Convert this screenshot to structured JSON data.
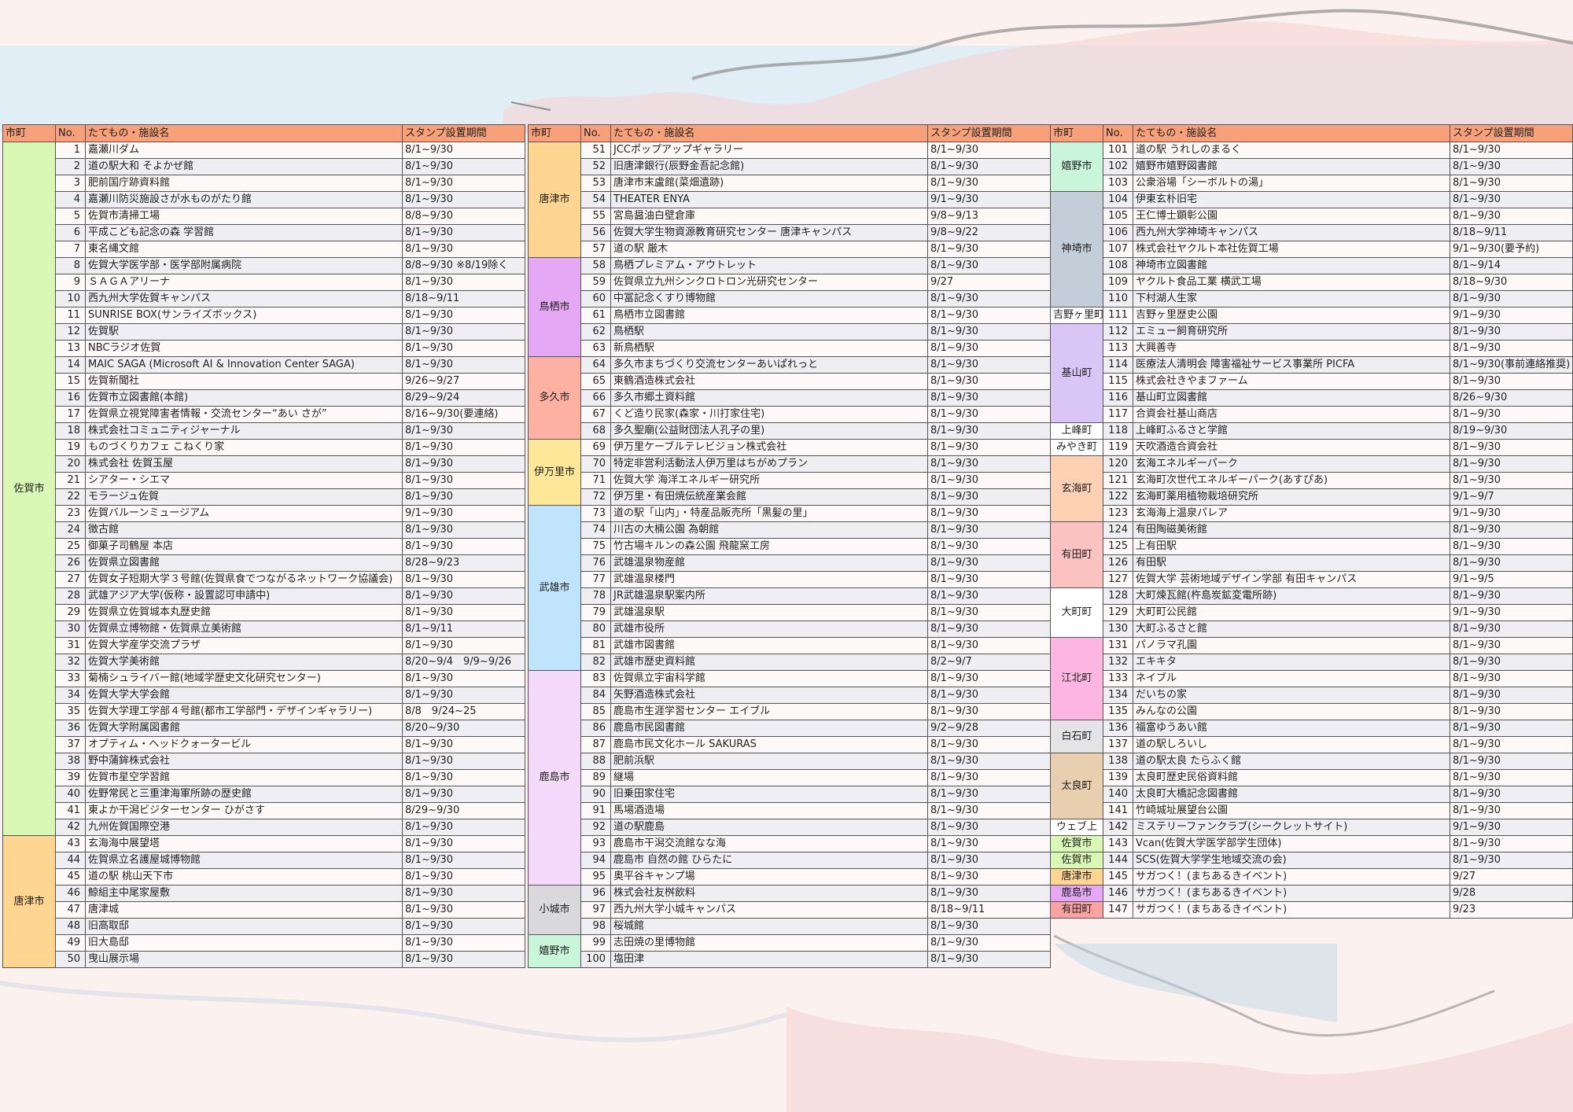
{
  "header": {
    "city": "市町",
    "no": "No.",
    "name": "たてもの・施設名",
    "period": "スタンプ設置期間"
  },
  "colors": {
    "header": "#f7a07a",
    "佐賀市": "#d9f7b5",
    "唐津市": "#ffd592",
    "鳥栖市": "#e4a8f4",
    "多久市": "#fcb1a3",
    "伊万里市": "#ffe79a",
    "武雄市": "#bfe4fb",
    "鹿島市": "#f3d9fa",
    "小城市": "#d9d9dc",
    "嬉野市": "#c9f6da",
    "神埼市": "#c3ced8",
    "吉野ヶ里町": "#ffffff",
    "基山町": "#d9c6f6",
    "上峰町": "#ffffff",
    "みやき町": "#ffffff",
    "玄海町": "#fed1b4",
    "有田町": "#fbc2c2",
    "大町町": "#ffffff",
    "江北町": "#fdb6e2",
    "白石町": "#e4e4e6",
    "太良町": "#e7cfb0",
    "ウェブ上": "#ffffff",
    "佐賀市web": "#d9f7b5",
    "唐津市web": "#ffd592",
    "鹿島市web": "#e4a8f4",
    "有田町web": "#fba3a3"
  },
  "tables": [
    {
      "groups": [
        {
          "city": "佐賀市",
          "color": "#d9f7b5",
          "rows": [
            [
              "1",
              "嘉瀬川ダム",
              "8/1~9/30"
            ],
            [
              "2",
              "道の駅大和 そよかぜ館",
              "8/1~9/30"
            ],
            [
              "3",
              "肥前国庁跡資料館",
              "8/1~9/30"
            ],
            [
              "4",
              "嘉瀬川防災施設さが水ものがたり館",
              "8/1~9/30"
            ],
            [
              "5",
              "佐賀市清掃工場",
              "8/8~9/30"
            ],
            [
              "6",
              "平成こども記念の森 学習館",
              "8/1~9/30"
            ],
            [
              "7",
              "東名縄文館",
              "8/1~9/30"
            ],
            [
              "8",
              "佐賀大学医学部・医学部附属病院",
              "8/8~9/30 ※8/19除く"
            ],
            [
              "9",
              "ＳＡＧＡアリーナ",
              "8/1~9/30"
            ],
            [
              "10",
              "西九州大学佐賀キャンパス",
              "8/18~9/11"
            ],
            [
              "11",
              "SUNRISE BOX(サンライズボックス)",
              "8/1~9/30"
            ],
            [
              "12",
              "佐賀駅",
              "8/1~9/30"
            ],
            [
              "13",
              "NBCラジオ佐賀",
              "8/1~9/30"
            ],
            [
              "14",
              "MAIC SAGA (Microsoft AI & Innovation Center SAGA)",
              "8/1~9/30"
            ],
            [
              "15",
              "佐賀新聞社",
              "9/26~9/27"
            ],
            [
              "16",
              "佐賀市立図書館(本館)",
              "8/29~9/24"
            ],
            [
              "17",
              "佐賀県立視覚障害者情報・交流センター“あい さが”",
              "8/16~9/30(要連絡)"
            ],
            [
              "18",
              "株式会社コミュニティジャーナル",
              "8/1~9/30"
            ],
            [
              "19",
              "ものづくりカフェ こねくり家",
              "8/1~9/30"
            ],
            [
              "20",
              "株式会社 佐賀玉屋",
              "8/1~9/30"
            ],
            [
              "21",
              "シアター・シエマ",
              "8/1~9/30"
            ],
            [
              "22",
              "モラージュ佐賀",
              "8/1~9/30"
            ],
            [
              "23",
              "佐賀バルーンミュージアム",
              "9/1~9/30"
            ],
            [
              "24",
              "徴古館",
              "8/1~9/30"
            ],
            [
              "25",
              "御菓子司鶴屋 本店",
              "8/1~9/30"
            ],
            [
              "26",
              "佐賀県立図書館",
              "8/28~9/23"
            ],
            [
              "27",
              "佐賀女子短期大学３号館(佐賀県食でつながるネットワーク協議会)",
              "8/1~9/30"
            ],
            [
              "28",
              "武雄アジア大学(仮称・設置認可申請中)",
              "8/1~9/30"
            ],
            [
              "29",
              "佐賀県立佐賀城本丸歴史館",
              "8/1~9/30"
            ],
            [
              "30",
              "佐賀県立博物館・佐賀県立美術館",
              "8/1~9/11"
            ],
            [
              "31",
              "佐賀大学産学交流プラザ",
              "8/1~9/30"
            ],
            [
              "32",
              "佐賀大学美術館",
              "8/20~9/4　9/9~9/26"
            ],
            [
              "33",
              "菊楠シュライバー館(地域学歴史文化研究センター)",
              "8/1~9/30"
            ],
            [
              "34",
              "佐賀大学大学会館",
              "8/1~9/30"
            ],
            [
              "35",
              "佐賀大学理工学部４号館(都市工学部門・デザインギャラリー)",
              "8/8　9/24~25"
            ],
            [
              "36",
              "佐賀大学附属図書館",
              "8/20~9/30"
            ],
            [
              "37",
              "オプティム・ヘッドクォータービル",
              "8/1~9/30"
            ],
            [
              "38",
              "野中蒲鉾株式会社",
              "8/1~9/30"
            ],
            [
              "39",
              "佐賀市星空学習館",
              "8/1~9/30"
            ],
            [
              "40",
              "佐野常民と三重津海軍所跡の歴史館",
              "8/1~9/30"
            ],
            [
              "41",
              "東よか干潟ビジターセンター ひがさす",
              "8/29~9/30"
            ],
            [
              "42",
              "九州佐賀国際空港",
              "8/1~9/30"
            ]
          ]
        },
        {
          "city": "唐津市",
          "color": "#ffd592",
          "rows": [
            [
              "43",
              "玄海海中展望塔",
              "8/1~9/30"
            ],
            [
              "44",
              "佐賀県立名護屋城博物館",
              "8/1~9/30"
            ],
            [
              "45",
              "道の駅 桃山天下市",
              "8/1~9/30"
            ],
            [
              "46",
              "鯨組主中尾家屋敷",
              "8/1~9/30"
            ],
            [
              "47",
              "唐津城",
              "8/1~9/30"
            ],
            [
              "48",
              "旧高取邸",
              "8/1~9/30"
            ],
            [
              "49",
              "旧大島邸",
              "8/1~9/30"
            ],
            [
              "50",
              "曳山展示場",
              "8/1~9/30"
            ]
          ]
        }
      ]
    },
    {
      "groups": [
        {
          "city": "唐津市",
          "color": "#ffd592",
          "rows": [
            [
              "51",
              "JCCポップアップギャラリー",
              "8/1~9/30"
            ],
            [
              "52",
              "旧唐津銀行(辰野金吾記念館)",
              "8/1~9/30"
            ],
            [
              "53",
              "唐津市末盧館(菜畑遺跡)",
              "8/1~9/30"
            ],
            [
              "54",
              "THEATER ENYA",
              "9/1~9/30"
            ],
            [
              "55",
              "宮島醤油白壁倉庫",
              "9/8~9/13"
            ],
            [
              "56",
              "佐賀大学生物資源教育研究センター 唐津キャンパス",
              "9/8~9/22"
            ],
            [
              "57",
              "道の駅 厳木",
              "8/1~9/30"
            ]
          ]
        },
        {
          "city": "鳥栖市",
          "color": "#e4a8f4",
          "rows": [
            [
              "58",
              "鳥栖プレミアム・アウトレット",
              "8/1~9/30"
            ],
            [
              "59",
              "佐賀県立九州シンクロトロン光研究センター",
              "9/27"
            ],
            [
              "60",
              "中冨記念くすり博物館",
              "8/1~9/30"
            ],
            [
              "61",
              "鳥栖市立図書館",
              "8/1~9/30"
            ],
            [
              "62",
              "鳥栖駅",
              "8/1~9/30"
            ],
            [
              "63",
              "新鳥栖駅",
              "8/1~9/30"
            ]
          ]
        },
        {
          "city": "多久市",
          "color": "#fcb1a3",
          "rows": [
            [
              "64",
              "多久市まちづくり交流センターあいぱれっと",
              "8/1~9/30"
            ],
            [
              "65",
              "東鶴酒造株式会社",
              "8/1~9/30"
            ],
            [
              "66",
              "多久市郷土資料館",
              "8/1~9/30"
            ],
            [
              "67",
              "くど造り民家(森家・川打家住宅)",
              "8/1~9/30"
            ],
            [
              "68",
              "多久聖廟(公益財団法人孔子の里)",
              "8/1~9/30"
            ]
          ]
        },
        {
          "city": "伊万里市",
          "color": "#ffe79a",
          "rows": [
            [
              "69",
              "伊万里ケーブルテレビジョン株式会社",
              "8/1~9/30"
            ],
            [
              "70",
              "特定非営利活動法人伊万里はちがめプラン",
              "8/1~9/30"
            ],
            [
              "71",
              "佐賀大学 海洋エネルギー研究所",
              "8/1~9/30"
            ],
            [
              "72",
              "伊万里・有田焼伝統産業会館",
              "8/1~9/30"
            ]
          ]
        },
        {
          "city": "武雄市",
          "color": "#bfe4fb",
          "rows": [
            [
              "73",
              "道の駅「山内」・特産品販売所「黒髪の里」",
              "8/1~9/30"
            ],
            [
              "74",
              "川古の大楠公園 為朝館",
              "8/1~9/30"
            ],
            [
              "75",
              "竹古場キルンの森公園 飛龍窯工房",
              "8/1~9/30"
            ],
            [
              "76",
              "武雄温泉物産館",
              "8/1~9/30"
            ],
            [
              "77",
              "武雄温泉楼門",
              "8/1~9/30"
            ],
            [
              "78",
              "JR武雄温泉駅案内所",
              "8/1~9/30"
            ],
            [
              "79",
              "武雄温泉駅",
              "8/1~9/30"
            ],
            [
              "80",
              "武雄市役所",
              "8/1~9/30"
            ],
            [
              "81",
              "武雄市図書館",
              "8/1~9/30"
            ],
            [
              "82",
              "武雄市歴史資料館",
              "8/2~9/7"
            ]
          ]
        },
        {
          "city": "鹿島市",
          "color": "#f3d9fa",
          "rows": [
            [
              "83",
              "佐賀県立宇宙科学館",
              "8/1~9/30"
            ],
            [
              "84",
              "矢野酒造株式会社",
              "8/1~9/30"
            ],
            [
              "85",
              "鹿島市生涯学習センター エイブル",
              "8/1~9/30"
            ],
            [
              "86",
              "鹿島市民図書館",
              "9/2~9/28"
            ],
            [
              "87",
              "鹿島市民文化ホール SAKURAS",
              "8/1~9/30"
            ],
            [
              "88",
              "肥前浜駅",
              "8/1~9/30"
            ],
            [
              "89",
              "継場",
              "8/1~9/30"
            ],
            [
              "90",
              "旧乗田家住宅",
              "8/1~9/30"
            ],
            [
              "91",
              "馬場酒造場",
              "8/1~9/30"
            ],
            [
              "92",
              "道の駅鹿島",
              "8/1~9/30"
            ],
            [
              "93",
              "鹿島市干潟交流館なな海",
              "8/1~9/30"
            ],
            [
              "94",
              "鹿島市 自然の館 ひらたに",
              "8/1~9/30"
            ],
            [
              "95",
              "奥平谷キャンプ場",
              "8/1~9/30"
            ]
          ]
        },
        {
          "city": "小城市",
          "color": "#d9d9dc",
          "rows": [
            [
              "96",
              "株式会社友桝飲料",
              "8/1~9/30"
            ],
            [
              "97",
              "西九州大学小城キャンパス",
              "8/18~9/11"
            ],
            [
              "98",
              "桜城館",
              "8/1~9/30"
            ]
          ]
        },
        {
          "city": "嬉野市",
          "color": "#c9f6da",
          "rows": [
            [
              "99",
              "志田焼の里博物館",
              "8/1~9/30"
            ],
            [
              "100",
              "塩田津",
              "8/1~9/30"
            ]
          ]
        }
      ]
    },
    {
      "groups": [
        {
          "city": "嬉野市",
          "color": "#c9f6da",
          "rows": [
            [
              "101",
              "道の駅 うれしのまるく",
              "8/1~9/30"
            ],
            [
              "102",
              "嬉野市嬉野図書館",
              "8/1~9/30"
            ],
            [
              "103",
              "公衆浴場「シーボルトの湯」",
              "8/1~9/30"
            ]
          ]
        },
        {
          "city": "神埼市",
          "color": "#c3ced8",
          "rows": [
            [
              "104",
              "伊東玄朴旧宅",
              "8/1~9/30"
            ],
            [
              "105",
              "王仁博士顕彰公園",
              "8/1~9/30"
            ],
            [
              "106",
              "西九州大学神埼キャンパス",
              "8/18~9/11"
            ],
            [
              "107",
              "株式会社ヤクルト本社佐賀工場",
              "9/1~9/30(要予約)"
            ],
            [
              "108",
              "神埼市立図書館",
              "8/1~9/14"
            ],
            [
              "109",
              "ヤクルト食品工業 横武工場",
              "8/18~9/30"
            ],
            [
              "110",
              "下村湖人生家",
              "8/1~9/30"
            ]
          ]
        },
        {
          "city": "吉野ヶ里町",
          "color": "#ffffff",
          "rows": [
            [
              "111",
              "吉野ヶ里歴史公園",
              "9/1~9/30"
            ]
          ]
        },
        {
          "city": "基山町",
          "color": "#d9c6f6",
          "rows": [
            [
              "112",
              "エミュー飼育研究所",
              "8/1~9/30"
            ],
            [
              "113",
              "大興善寺",
              "8/1~9/30"
            ],
            [
              "114",
              "医療法人清明会 障害福祉サービス事業所 PICFA",
              "8/1~9/30(事前連絡推奨)"
            ],
            [
              "115",
              "株式会社きやまファーム",
              "8/1~9/30"
            ],
            [
              "116",
              "基山町立図書館",
              "8/26~9/30"
            ],
            [
              "117",
              "合資会社基山商店",
              "8/1~9/30"
            ]
          ]
        },
        {
          "city": "上峰町",
          "color": "#ffffff",
          "rows": [
            [
              "118",
              "上峰町ふるさと学館",
              "8/19~9/30"
            ]
          ]
        },
        {
          "city": "みやき町",
          "color": "#ffffff",
          "rows": [
            [
              "119",
              "天吹酒造合資会社",
              "8/1~9/30"
            ]
          ]
        },
        {
          "city": "玄海町",
          "color": "#fed1b4",
          "rows": [
            [
              "120",
              "玄海エネルギーパーク",
              "8/1~9/30"
            ],
            [
              "121",
              "玄海町次世代エネルギーパーク(あすぴあ)",
              "8/1~9/30"
            ],
            [
              "122",
              "玄海町薬用植物栽培研究所",
              "9/1~9/7"
            ],
            [
              "123",
              "玄海海上温泉パレア",
              "9/1~9/30"
            ]
          ]
        },
        {
          "city": "有田町",
          "color": "#fbc2c2",
          "rows": [
            [
              "124",
              "有田陶磁美術館",
              "8/1~9/30"
            ],
            [
              "125",
              "上有田駅",
              "8/1~9/30"
            ],
            [
              "126",
              "有田駅",
              "8/1~9/30"
            ],
            [
              "127",
              "佐賀大学 芸術地域デザイン学部 有田キャンパス",
              "9/1~9/5"
            ]
          ]
        },
        {
          "city": "大町町",
          "color": "#ffffff",
          "rows": [
            [
              "128",
              "大町煉瓦館(杵島炭鉱変電所跡)",
              "8/1~9/30"
            ],
            [
              "129",
              "大町町公民館",
              "9/1~9/30"
            ],
            [
              "130",
              "大町ふるさと館",
              "8/1~9/30"
            ]
          ]
        },
        {
          "city": "江北町",
          "color": "#fdb6e2",
          "rows": [
            [
              "131",
              "パノラマ孔園",
              "8/1~9/30"
            ],
            [
              "132",
              "エキキタ",
              "8/1~9/30"
            ],
            [
              "133",
              "ネイブル",
              "8/1~9/30"
            ],
            [
              "134",
              "だいちの家",
              "8/1~9/30"
            ],
            [
              "135",
              "みんなの公園",
              "8/1~9/30"
            ]
          ]
        },
        {
          "city": "白石町",
          "color": "#e4e4e6",
          "rows": [
            [
              "136",
              "福富ゆうあい館",
              "8/1~9/30"
            ],
            [
              "137",
              "道の駅しろいし",
              "8/1~9/30"
            ]
          ]
        },
        {
          "city": "太良町",
          "color": "#e7cfb0",
          "rows": [
            [
              "138",
              "道の駅太良 たらふく館",
              "8/1~9/30"
            ],
            [
              "139",
              "太良町歴史民俗資料館",
              "8/1~9/30"
            ],
            [
              "140",
              "太良町大橋記念図書館",
              "8/1~9/30"
            ],
            [
              "141",
              "竹崎城址展望台公園",
              "8/1~9/30"
            ]
          ]
        },
        {
          "city": "ウェブ上",
          "color": "#ffffff",
          "rows": [
            [
              "142",
              "ミステリーファンクラブ(シークレットサイト)",
              "9/1~9/30"
            ]
          ]
        },
        {
          "city": "佐賀市",
          "color": "#d9f7b5",
          "rows": [
            [
              "143",
              "Vcan(佐賀大学医学部学生団体)",
              "8/1~9/30"
            ]
          ]
        },
        {
          "city": "佐賀市",
          "color": "#d9f7b5",
          "rows": [
            [
              "144",
              "SCS(佐賀大学学生地域交流の会)",
              "8/1~9/30"
            ]
          ]
        },
        {
          "city": "唐津市",
          "color": "#ffd592",
          "rows": [
            [
              "145",
              "サガつく！(まちあるきイベント)",
              "9/27"
            ]
          ]
        },
        {
          "city": "鹿島市",
          "color": "#e4a8f4",
          "rows": [
            [
              "146",
              "サガつく！(まちあるきイベント)",
              "9/28"
            ]
          ]
        },
        {
          "city": "有田町",
          "color": "#fba3a3",
          "rows": [
            [
              "147",
              "サガつく！(まちあるきイベント)",
              "9/23"
            ]
          ]
        }
      ]
    }
  ]
}
